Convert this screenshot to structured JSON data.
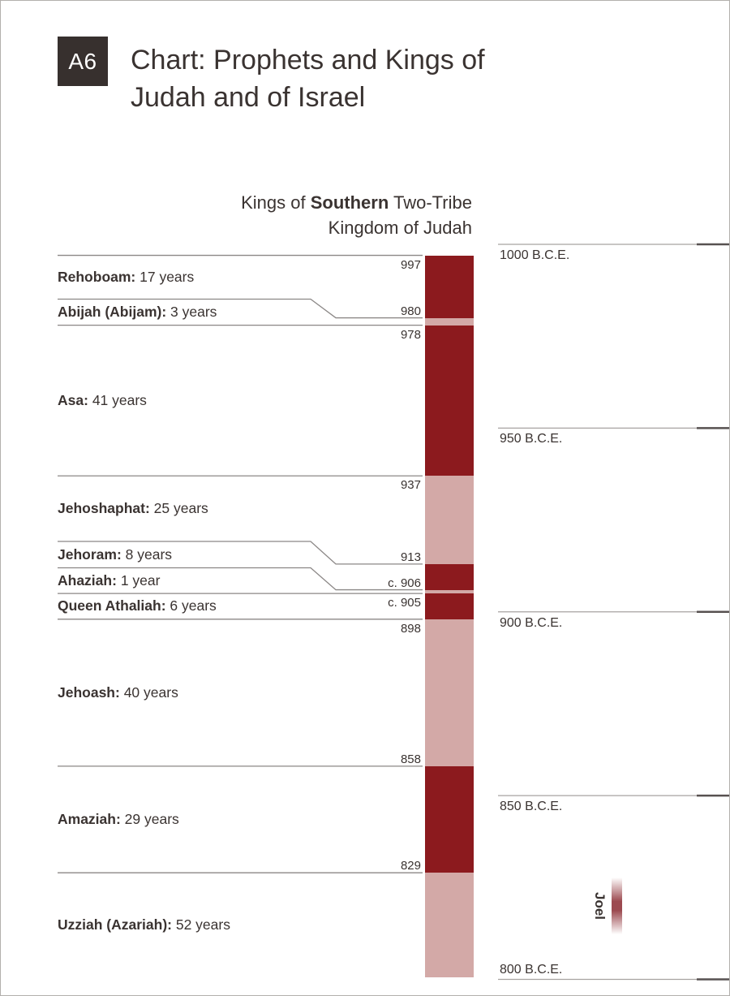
{
  "header": {
    "badge": "A6",
    "title_line1": "Chart: Prophets and Kings of",
    "title_line2": "Judah and of Israel"
  },
  "column": {
    "heading_line1_pre": "Kings of ",
    "heading_line1_bold": "Southern",
    "heading_line1_post": " Two-Tribe",
    "heading_line2": "Kingdom of Judah"
  },
  "chart_data": {
    "type": "bar",
    "subtype": "vertical-timeline",
    "title": "Kings of Southern Two-Tribe Kingdom of Judah",
    "time_axis": {
      "unit": "B.C.E.",
      "direction": "descending-downward",
      "ticks": [
        {
          "year": 1000,
          "label": "1000 B.C.E."
        },
        {
          "year": 950,
          "label": "950 B.C.E."
        },
        {
          "year": 900,
          "label": "900 B.C.E."
        },
        {
          "year": 850,
          "label": "850 B.C.E."
        },
        {
          "year": 800,
          "label": "800 B.C.E."
        }
      ]
    },
    "kings": [
      {
        "name": "Rehoboam:",
        "duration": "17 years",
        "start_label": "997",
        "start_year": 997,
        "end_year": 980,
        "tone": "dark"
      },
      {
        "name": "Abijah (Abijam):",
        "duration": "3 years",
        "start_label": "980",
        "start_year": 980,
        "end_year": 978,
        "tone": "light"
      },
      {
        "name": "Asa:",
        "duration": "41 years",
        "start_label": "978",
        "start_year": 978,
        "end_year": 937,
        "tone": "dark"
      },
      {
        "name": "Jehoshaphat:",
        "duration": "25 years",
        "start_label": "937",
        "start_year": 937,
        "end_year": 913,
        "tone": "light"
      },
      {
        "name": "Jehoram:",
        "duration": "8 years",
        "start_label": "913",
        "start_year": 913,
        "end_year": 906,
        "tone": "dark"
      },
      {
        "name": "Ahaziah:",
        "duration": "1 year",
        "start_label": "c. 906",
        "start_year": 906,
        "end_year": 905,
        "tone": "light"
      },
      {
        "name": "Queen Athaliah:",
        "duration": "6 years",
        "start_label": "c. 905",
        "start_year": 905,
        "end_year": 898,
        "tone": "dark"
      },
      {
        "name": "Jehoash:",
        "duration": "40 years",
        "start_label": "898",
        "start_year": 898,
        "end_year": 858,
        "tone": "light"
      },
      {
        "name": "Amaziah:",
        "duration": "29 years",
        "start_label": "858",
        "start_year": 858,
        "end_year": 829,
        "tone": "dark"
      },
      {
        "name": "Uzziah (Azariah):",
        "duration": "52 years",
        "start_label": "829",
        "start_year": 829,
        "end_year": 777,
        "tone": "light"
      }
    ],
    "prophets": [
      {
        "name": "Joel",
        "approx_year": 820
      }
    ]
  },
  "colors": {
    "reign_dark": "#8C1A1E",
    "reign_light": "#D3A9A7",
    "text": "#3A3331",
    "badge_bg": "#37302E",
    "rule_gray": "#8B8786",
    "scale_gray": "#A7A3A1",
    "scale_tick_dark": "#575150",
    "border": "#B3B0AD",
    "prophet_red": "#9C4A50"
  }
}
